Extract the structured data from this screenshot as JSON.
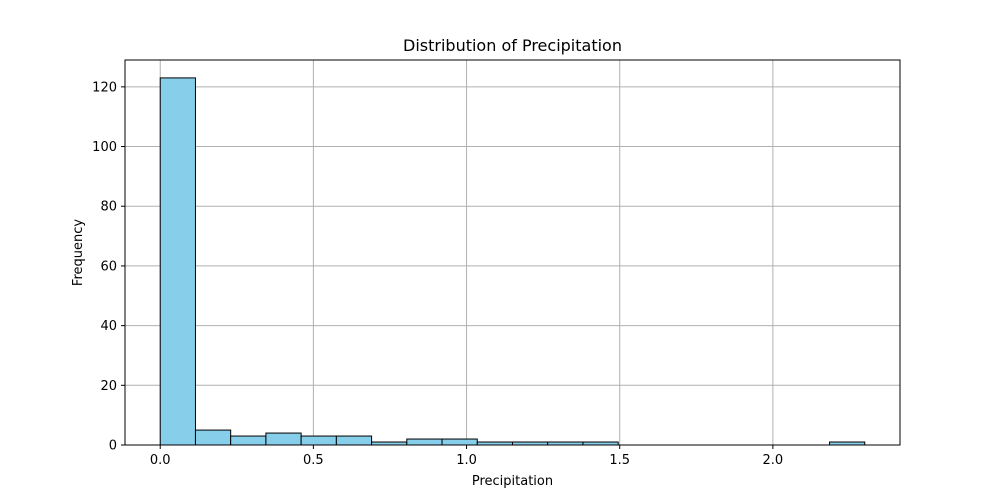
{
  "chart_data": {
    "type": "bar",
    "title": "Distribution of Precipitation",
    "xlabel": "Precipitation",
    "ylabel": "Frequency",
    "xlim": [
      -0.115,
      2.415
    ],
    "ylim": [
      0,
      129
    ],
    "x_ticks": [
      0.0,
      0.5,
      1.0,
      1.5,
      2.0
    ],
    "x_tick_labels": [
      "0.0",
      "0.5",
      "1.0",
      "1.5",
      "2.0"
    ],
    "y_ticks": [
      0,
      20,
      40,
      60,
      80,
      100,
      120
    ],
    "y_tick_labels": [
      "0",
      "20",
      "40",
      "60",
      "80",
      "100",
      "120"
    ],
    "grid": true,
    "bin_width": 0.115,
    "bin_starts": [
      0.0,
      0.115,
      0.23,
      0.345,
      0.46,
      0.575,
      0.69,
      0.805,
      0.92,
      1.035,
      1.15,
      1.265,
      1.38,
      1.495,
      1.61,
      1.725,
      1.84,
      1.955,
      2.07,
      2.185
    ],
    "values": [
      123,
      5,
      3,
      4,
      3,
      3,
      1,
      2,
      2,
      1,
      1,
      1,
      1,
      0,
      0,
      0,
      0,
      0,
      0,
      1
    ],
    "bar_color": "#87CEEB",
    "edge_color": "#000000",
    "grid_color": "#b0b0b0"
  }
}
